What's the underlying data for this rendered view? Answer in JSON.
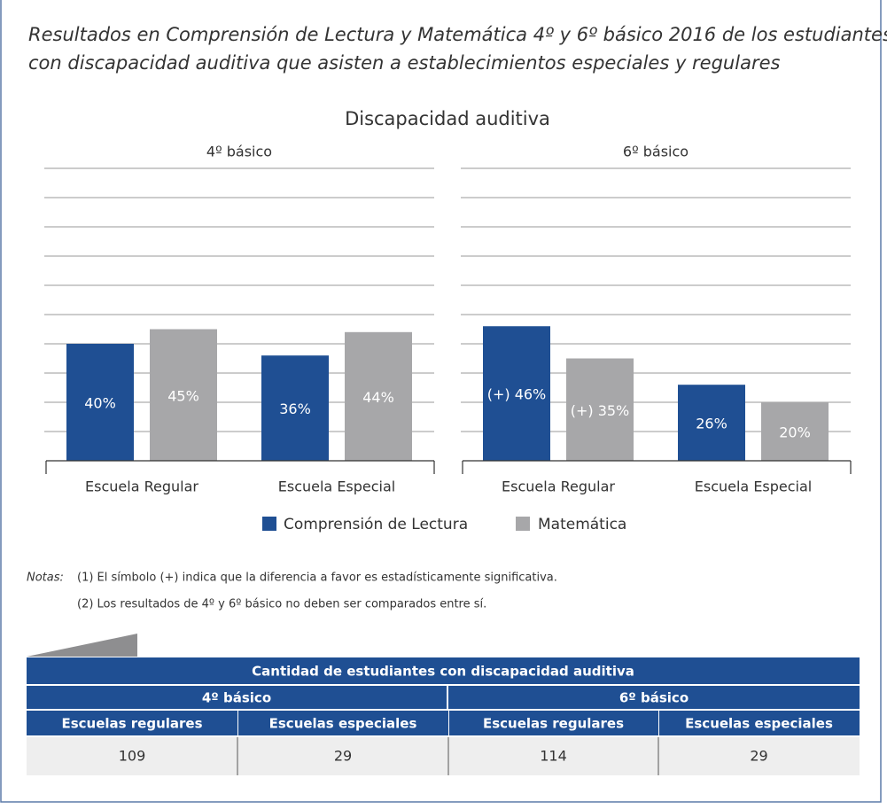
{
  "header": {
    "title_lines": [
      "Resultados en Comprensión de Lectura y Matemática 4º y 6º básico 2016 de los estudiantes",
      "con discapacidad auditiva que asisten a establecimientos especiales y regulares"
    ],
    "heading": "Discapacidad auditiva"
  },
  "chart_data": [
    {
      "type": "bar",
      "title": "4º básico",
      "categories": [
        "Escuela Regular",
        "Escuela Especial"
      ],
      "series": [
        {
          "name": "Comprensión de Lectura",
          "color": "#1f4f93",
          "values": [
            40,
            36
          ],
          "value_labels": [
            "40%",
            "36%"
          ]
        },
        {
          "name": "Matemática",
          "color": "#a7a7a9",
          "values": [
            45,
            44
          ],
          "value_labels": [
            "45%",
            "44%"
          ]
        }
      ],
      "ylim": [
        0,
        100
      ],
      "yticks": [
        10,
        20,
        30,
        40,
        50,
        60,
        70,
        80,
        90,
        100
      ],
      "grid": true
    },
    {
      "type": "bar",
      "title": "6º básico",
      "categories": [
        "Escuela Regular",
        "Escuela Especial"
      ],
      "series": [
        {
          "color": "#1f4f93",
          "values": [
            46,
            26
          ],
          "value_labels": [
            "(+) 46%",
            "26%"
          ]
        },
        {
          "color": "#a7a7a9",
          "values": [
            35,
            20
          ],
          "value_labels": [
            "(+) 35%",
            "20%"
          ]
        }
      ],
      "ylim": [
        0,
        100
      ],
      "yticks": [
        10,
        20,
        30,
        40,
        50,
        60,
        70,
        80,
        90,
        100
      ],
      "grid": true
    }
  ],
  "notes": {
    "label": "Notas:",
    "items": [
      "(1)  El símbolo (+) indica que la diferencia a favor es estadísticamente significativa.",
      "(2)  Los resultados de 4º y 6º básico no deben ser comparados entre sí."
    ]
  },
  "table": {
    "title": "Cantidad  de estudiantes con discapacidad auditiva",
    "groups": [
      "4º básico",
      "6º básico"
    ],
    "columns": [
      "Escuelas regulares",
      "Escuelas especiales",
      "Escuelas regulares",
      "Escuelas especiales"
    ],
    "rows": [
      [
        "109",
        "29",
        "114",
        "29"
      ]
    ]
  }
}
